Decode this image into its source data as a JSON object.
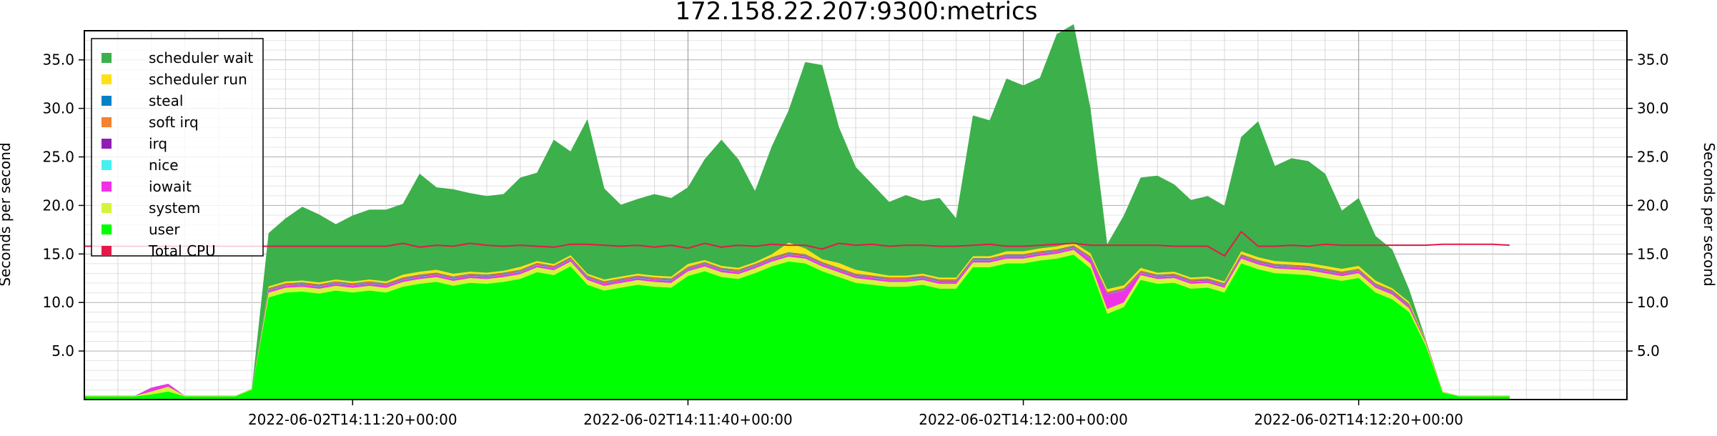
{
  "chart_data": {
    "type": "area",
    "title": "172.158.22.207:9300:metrics",
    "ylabel_left": "Seconds per second",
    "ylabel_right": "Seconds per second",
    "x_start": "2022-06-02T14:11:04+00:00",
    "x_end": "2022-06-02T14:12:36+00:00",
    "x_step_seconds": 1,
    "ylim": [
      0,
      38
    ],
    "yticks": [
      "5.0",
      "10.0",
      "15.0",
      "20.0",
      "25.0",
      "30.0",
      "35.0"
    ],
    "xticks": [
      "2022-06-02T14:11:20+00:00",
      "2022-06-02T14:11:40+00:00",
      "2022-06-02T14:12:00+00:00",
      "2022-06-02T14:12:20+00:00"
    ],
    "grid": true,
    "legend_position": "top-left",
    "legend": [
      {
        "label": "scheduler wait",
        "color": "#3cb04b"
      },
      {
        "label": "scheduler run",
        "color": "#ffe119"
      },
      {
        "label": "steal",
        "color": "#0082c8"
      },
      {
        "label": "soft irq",
        "color": "#f58231"
      },
      {
        "label": "irq",
        "color": "#911eb4"
      },
      {
        "label": "nice",
        "color": "#46f0f0"
      },
      {
        "label": "iowait",
        "color": "#f032e6"
      },
      {
        "label": "system",
        "color": "#d2f53c"
      },
      {
        "label": "user",
        "color": "#00ff00"
      },
      {
        "label": "Total CPU",
        "color": "#e6194b"
      }
    ],
    "series": [
      {
        "name": "user",
        "color": "#00ff00",
        "values": [
          0.3,
          0.3,
          0.3,
          0.3,
          0.5,
          0.8,
          0.3,
          0.3,
          0.3,
          0.3,
          1.0,
          10.5,
          11.0,
          11.1,
          10.9,
          11.2,
          11.0,
          11.2,
          11.0,
          11.6,
          11.9,
          12.1,
          11.7,
          12.0,
          11.9,
          12.1,
          12.4,
          13.1,
          12.8,
          13.7,
          11.8,
          11.2,
          11.5,
          11.8,
          11.6,
          11.5,
          12.7,
          13.2,
          12.6,
          12.4,
          13.0,
          13.7,
          14.2,
          14.0,
          13.2,
          12.6,
          12.0,
          11.8,
          11.6,
          11.6,
          11.8,
          11.4,
          11.4,
          13.6,
          13.6,
          14.0,
          14.0,
          14.3,
          14.5,
          14.9,
          13.5,
          8.8,
          9.5,
          12.3,
          11.9,
          12.0,
          11.4,
          11.5,
          11.0,
          14.0,
          13.4,
          13.0,
          12.9,
          12.8,
          12.5,
          12.2,
          12.5,
          11.0,
          10.3,
          9.0,
          5.5,
          0.7,
          0.3,
          0.3,
          0.3,
          0.3
        ]
      },
      {
        "name": "system",
        "color": "#d2f53c",
        "values": [
          0.05,
          0.05,
          0.05,
          0.05,
          0.3,
          0.5,
          0.05,
          0.05,
          0.05,
          0.05,
          0.1,
          0.5,
          0.5,
          0.5,
          0.5,
          0.5,
          0.5,
          0.5,
          0.5,
          0.5,
          0.5,
          0.5,
          0.5,
          0.5,
          0.5,
          0.5,
          0.5,
          0.5,
          0.5,
          0.5,
          0.5,
          0.5,
          0.5,
          0.5,
          0.5,
          0.5,
          0.5,
          0.5,
          0.5,
          0.5,
          0.5,
          0.5,
          0.5,
          0.5,
          0.5,
          0.5,
          0.5,
          0.5,
          0.5,
          0.5,
          0.5,
          0.5,
          0.5,
          0.5,
          0.5,
          0.5,
          0.5,
          0.5,
          0.5,
          0.5,
          0.5,
          0.5,
          0.5,
          0.5,
          0.5,
          0.5,
          0.5,
          0.5,
          0.5,
          0.5,
          0.5,
          0.5,
          0.5,
          0.5,
          0.5,
          0.5,
          0.5,
          0.5,
          0.5,
          0.4,
          0.3,
          0.1,
          0.05,
          0.05,
          0.05,
          0.05
        ]
      },
      {
        "name": "iowait",
        "color": "#f032e6",
        "values": [
          0,
          0,
          0,
          0,
          0.4,
          0.3,
          0,
          0,
          0,
          0,
          0,
          0.2,
          0.2,
          0.2,
          0.2,
          0.2,
          0.2,
          0.2,
          0.2,
          0.2,
          0.2,
          0.2,
          0.2,
          0.2,
          0.2,
          0.2,
          0.2,
          0.2,
          0.2,
          0.2,
          0.2,
          0.2,
          0.2,
          0.2,
          0.2,
          0.2,
          0.2,
          0.2,
          0.2,
          0.2,
          0.2,
          0.2,
          0.2,
          0.2,
          0.2,
          0.2,
          0.2,
          0.2,
          0.2,
          0.2,
          0.2,
          0.2,
          0.2,
          0.2,
          0.2,
          0.2,
          0.2,
          0.2,
          0.2,
          0.2,
          0.5,
          1.5,
          1.2,
          0.2,
          0.2,
          0.2,
          0.2,
          0.2,
          0.2,
          0.2,
          0.2,
          0.2,
          0.2,
          0.2,
          0.2,
          0.2,
          0.2,
          0.2,
          0.2,
          0.2,
          0.1,
          0,
          0,
          0,
          0,
          0
        ]
      },
      {
        "name": "nice",
        "color": "#46f0f0",
        "values": [
          0,
          0,
          0,
          0,
          0,
          0,
          0,
          0,
          0,
          0,
          0,
          0.05,
          0.05,
          0.05,
          0.05,
          0.05,
          0.05,
          0.05,
          0.05,
          0.05,
          0.05,
          0.05,
          0.05,
          0.05,
          0.05,
          0.05,
          0.05,
          0.05,
          0.05,
          0.05,
          0.05,
          0.05,
          0.05,
          0.05,
          0.05,
          0.05,
          0.05,
          0.05,
          0.05,
          0.05,
          0.05,
          0.05,
          0.05,
          0.05,
          0.05,
          0.05,
          0.05,
          0.05,
          0.05,
          0.05,
          0.05,
          0.05,
          0.05,
          0.05,
          0.05,
          0.05,
          0.05,
          0.05,
          0.05,
          0.05,
          0.05,
          0.05,
          0.05,
          0.05,
          0.05,
          0.05,
          0.05,
          0.05,
          0.05,
          0.05,
          0.05,
          0.05,
          0.05,
          0.05,
          0.05,
          0.05,
          0.05,
          0.05,
          0.05,
          0.05,
          0,
          0,
          0,
          0,
          0,
          0
        ]
      },
      {
        "name": "irq",
        "color": "#911eb4",
        "values": [
          0,
          0,
          0,
          0,
          0,
          0,
          0,
          0,
          0,
          0,
          0,
          0.05,
          0.05,
          0.05,
          0.05,
          0.05,
          0.05,
          0.05,
          0.05,
          0.05,
          0.05,
          0.05,
          0.05,
          0.05,
          0.05,
          0.05,
          0.05,
          0.05,
          0.05,
          0.05,
          0.05,
          0.05,
          0.05,
          0.05,
          0.05,
          0.05,
          0.05,
          0.05,
          0.05,
          0.05,
          0.05,
          0.05,
          0.05,
          0.05,
          0.05,
          0.05,
          0.05,
          0.05,
          0.05,
          0.05,
          0.05,
          0.05,
          0.05,
          0.05,
          0.05,
          0.05,
          0.05,
          0.05,
          0.05,
          0.05,
          0.05,
          0.05,
          0.05,
          0.05,
          0.05,
          0.05,
          0.05,
          0.05,
          0.05,
          0.05,
          0.05,
          0.05,
          0.05,
          0.05,
          0.05,
          0.05,
          0.05,
          0.05,
          0.05,
          0.05,
          0,
          0,
          0,
          0,
          0,
          0
        ]
      },
      {
        "name": "soft irq",
        "color": "#f58231",
        "values": [
          0,
          0,
          0,
          0,
          0,
          0,
          0,
          0,
          0,
          0,
          0,
          0.1,
          0.1,
          0.1,
          0.1,
          0.1,
          0.1,
          0.1,
          0.1,
          0.1,
          0.1,
          0.1,
          0.1,
          0.1,
          0.1,
          0.1,
          0.1,
          0.1,
          0.1,
          0.1,
          0.1,
          0.1,
          0.1,
          0.1,
          0.1,
          0.1,
          0.1,
          0.1,
          0.1,
          0.1,
          0.1,
          0.1,
          0.1,
          0.1,
          0.1,
          0.1,
          0.1,
          0.1,
          0.1,
          0.1,
          0.1,
          0.1,
          0.1,
          0.1,
          0.1,
          0.1,
          0.1,
          0.1,
          0.1,
          0.1,
          0.1,
          0.1,
          0.1,
          0.1,
          0.1,
          0.1,
          0.1,
          0.1,
          0.1,
          0.1,
          0.1,
          0.1,
          0.1,
          0.1,
          0.1,
          0.1,
          0.1,
          0.1,
          0.1,
          0.1,
          0.05,
          0,
          0,
          0,
          0,
          0
        ]
      },
      {
        "name": "steal",
        "color": "#0082c8",
        "values": [
          0,
          0,
          0,
          0,
          0,
          0,
          0,
          0,
          0,
          0,
          0,
          0.05,
          0.05,
          0.05,
          0.05,
          0.05,
          0.05,
          0.05,
          0.05,
          0.05,
          0.05,
          0.05,
          0.05,
          0.05,
          0.05,
          0.05,
          0.05,
          0.05,
          0.05,
          0.05,
          0.05,
          0.05,
          0.05,
          0.05,
          0.05,
          0.05,
          0.05,
          0.05,
          0.05,
          0.05,
          0.05,
          0.05,
          0.05,
          0.05,
          0.05,
          0.05,
          0.05,
          0.05,
          0.05,
          0.05,
          0.05,
          0.05,
          0.05,
          0.05,
          0.05,
          0.05,
          0.05,
          0.05,
          0.05,
          0.05,
          0.05,
          0.05,
          0.05,
          0.05,
          0.05,
          0.05,
          0.05,
          0.05,
          0.05,
          0.05,
          0.05,
          0.05,
          0.05,
          0.05,
          0.05,
          0.05,
          0.05,
          0.05,
          0.05,
          0.05,
          0,
          0,
          0,
          0,
          0,
          0
        ]
      },
      {
        "name": "scheduler run",
        "color": "#ffe119",
        "values": [
          0,
          0,
          0,
          0,
          0,
          0,
          0,
          0,
          0,
          0,
          0,
          0.2,
          0.2,
          0.2,
          0.2,
          0.2,
          0.2,
          0.2,
          0.2,
          0.3,
          0.3,
          0.3,
          0.3,
          0.2,
          0.2,
          0.2,
          0.3,
          0.2,
          0.2,
          0.2,
          0.2,
          0.2,
          0.2,
          0.2,
          0.2,
          0.2,
          0.3,
          0.2,
          0.2,
          0.2,
          0.2,
          0.3,
          1.0,
          0.6,
          0.3,
          0.5,
          0.4,
          0.3,
          0.2,
          0.2,
          0.2,
          0.2,
          0.2,
          0.2,
          0.2,
          0.3,
          0.3,
          0.3,
          0.3,
          0.3,
          0.3,
          0.3,
          0.3,
          0.3,
          0.2,
          0.2,
          0.2,
          0.2,
          0.2,
          0.3,
          0.3,
          0.3,
          0.3,
          0.3,
          0.3,
          0.3,
          0.3,
          0.3,
          0.2,
          0.2,
          0.1,
          0,
          0,
          0,
          0,
          0
        ]
      },
      {
        "name": "scheduler wait",
        "color": "#3cb04b",
        "values": [
          0,
          0,
          0,
          0,
          0,
          0,
          0,
          0,
          0,
          0,
          0,
          5.5,
          6.5,
          7.6,
          7.0,
          5.7,
          6.8,
          7.2,
          7.4,
          7.3,
          10.1,
          8.5,
          8.7,
          8.1,
          7.9,
          7.9,
          9.2,
          9.1,
          12.8,
          10.7,
          15.9,
          9.4,
          7.4,
          7.7,
          8.4,
          8.1,
          7.9,
          10.4,
          13.0,
          11.2,
          7.3,
          11.1,
          13.6,
          19.2,
          20.0,
          14.0,
          10.6,
          9.1,
          7.6,
          8.3,
          7.5,
          8.2,
          6.1,
          14.5,
          14.0,
          17.8,
          17.1,
          17.6,
          21.9,
          22.5,
          14.9,
          4.6,
          7.2,
          9.3,
          10.0,
          9.0,
          8.0,
          8.3,
          7.8,
          11.8,
          14.0,
          9.8,
          10.7,
          10.5,
          9.5,
          6.0,
          7.0,
          4.6,
          4.0,
          1.3,
          0.1,
          0,
          0,
          0,
          0,
          0
        ]
      },
      {
        "name": "Total CPU",
        "color": "#e6194b",
        "values": [
          15.8,
          15.8,
          15.8,
          15.8,
          15.8,
          15.8,
          15.8,
          15.8,
          15.8,
          15.8,
          15.8,
          15.8,
          15.8,
          15.8,
          15.8,
          15.8,
          15.8,
          15.8,
          15.8,
          16.1,
          15.7,
          15.9,
          15.8,
          16.1,
          15.9,
          15.8,
          15.9,
          15.8,
          15.7,
          16.0,
          16.0,
          15.9,
          15.8,
          15.9,
          15.7,
          15.9,
          15.6,
          16.1,
          15.7,
          15.9,
          15.8,
          16.0,
          15.9,
          15.9,
          15.5,
          16.1,
          15.9,
          16.0,
          15.8,
          15.9,
          15.9,
          15.8,
          15.8,
          15.9,
          16.0,
          15.8,
          15.8,
          15.9,
          16.0,
          16.1,
          15.9,
          15.9,
          15.9,
          15.9,
          15.9,
          15.8,
          15.8,
          15.8,
          14.8,
          17.3,
          15.8,
          15.8,
          15.9,
          15.8,
          16.0,
          15.9,
          15.9,
          15.9,
          15.9,
          15.9,
          15.9,
          16.0,
          16.0,
          16.0,
          16.0,
          15.9
        ]
      }
    ]
  }
}
